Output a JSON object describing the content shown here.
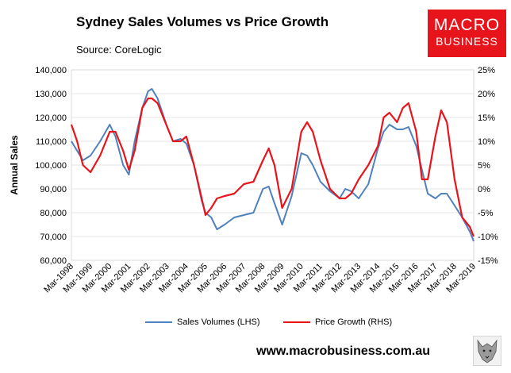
{
  "header": {
    "title": "Sydney Sales Volumes vs Price Growth",
    "source": "Source: CoreLogic"
  },
  "logo": {
    "line1": "MACRO",
    "line2": "BUSINESS"
  },
  "footer": {
    "url": "www.macrobusiness.com.au"
  },
  "colors": {
    "sales": "#4f81bd",
    "price": "#e8141b",
    "logo_bg": "#e8141b"
  },
  "chart_data": {
    "type": "line",
    "title": "Sydney Sales Volumes vs Price Growth",
    "ylabel": "Annual Sales",
    "ylim_left": [
      60000,
      140000
    ],
    "ylim_right": [
      -15,
      25
    ],
    "y_ticks_left": [
      "140,000",
      "130,000",
      "120,000",
      "110,000",
      "100,000",
      "90,000",
      "80,000",
      "70,000",
      "60,000"
    ],
    "y_ticks_right": [
      "25%",
      "20%",
      "15%",
      "10%",
      "5%",
      "0%",
      "-5%",
      "-10%",
      "-15%"
    ],
    "x_ticks": [
      "Mar-1998",
      "Mar-1999",
      "Mar-2000",
      "Mar-2001",
      "Mar-2002",
      "Mar-2003",
      "Mar-2004",
      "Mar-2005",
      "Mar-2006",
      "Mar-2007",
      "Mar-2008",
      "Mar-2009",
      "Mar-2010",
      "Mar-2011",
      "Mar-2012",
      "Mar-2013",
      "Mar-2014",
      "Mar-2015",
      "Mar-2016",
      "Mar-2017",
      "Mar-2018",
      "Mar-2019"
    ],
    "xlim": [
      1998.0,
      2019.0
    ],
    "series": [
      {
        "name": "Sales Volumes (LHS)",
        "axis": "left",
        "color": "#4f81bd",
        "x": [
          1998.0,
          1998.3,
          1998.6,
          1999.0,
          1999.5,
          2000.0,
          2000.3,
          2000.7,
          2001.0,
          2001.3,
          2001.7,
          2002.0,
          2002.2,
          2002.5,
          2003.0,
          2003.3,
          2003.7,
          2004.0,
          2004.4,
          2004.8,
          2005.0,
          2005.3,
          2005.6,
          2006.0,
          2006.5,
          2007.0,
          2007.5,
          2008.0,
          2008.3,
          2008.6,
          2009.0,
          2009.5,
          2010.0,
          2010.3,
          2010.6,
          2011.0,
          2011.5,
          2012.0,
          2012.3,
          2012.6,
          2013.0,
          2013.5,
          2014.0,
          2014.3,
          2014.6,
          2015.0,
          2015.3,
          2015.6,
          2016.0,
          2016.3,
          2016.6,
          2017.0,
          2017.3,
          2017.6,
          2018.0,
          2018.4,
          2018.8,
          2019.0
        ],
        "values": [
          110000,
          106000,
          102000,
          104000,
          110000,
          117000,
          112000,
          100000,
          96000,
          110000,
          124000,
          131000,
          132000,
          128000,
          116000,
          110000,
          111000,
          109000,
          100000,
          85000,
          80000,
          78000,
          73000,
          75000,
          78000,
          79000,
          80000,
          90000,
          91000,
          84000,
          75000,
          87000,
          105000,
          104000,
          100000,
          93000,
          89000,
          86000,
          90000,
          89000,
          86000,
          92000,
          107000,
          114000,
          117000,
          115000,
          115000,
          116000,
          108000,
          98000,
          88000,
          86000,
          88000,
          88000,
          83000,
          78000,
          72000,
          68000
        ]
      },
      {
        "name": "Price Growth (RHS)",
        "axis": "right",
        "color": "#e8141b",
        "x": [
          1998.0,
          1998.3,
          1998.6,
          1999.0,
          1999.5,
          2000.0,
          2000.3,
          2000.7,
          2001.0,
          2001.3,
          2001.7,
          2002.0,
          2002.2,
          2002.5,
          2003.0,
          2003.3,
          2003.7,
          2004.0,
          2004.4,
          2004.8,
          2005.0,
          2005.3,
          2005.6,
          2006.0,
          2006.5,
          2007.0,
          2007.5,
          2008.0,
          2008.3,
          2008.6,
          2009.0,
          2009.5,
          2010.0,
          2010.3,
          2010.6,
          2011.0,
          2011.5,
          2012.0,
          2012.3,
          2012.6,
          2013.0,
          2013.5,
          2014.0,
          2014.3,
          2014.6,
          2015.0,
          2015.3,
          2015.6,
          2016.0,
          2016.3,
          2016.6,
          2017.0,
          2017.3,
          2017.6,
          2018.0,
          2018.4,
          2018.8,
          2019.0
        ],
        "values": [
          13.5,
          10,
          5,
          3.5,
          7,
          12,
          12,
          8,
          4,
          8,
          17,
          19,
          19,
          18,
          13,
          10,
          10,
          11,
          5,
          -2,
          -5.5,
          -4,
          -2,
          -1.5,
          -1,
          1,
          1.5,
          6,
          8.5,
          5,
          -4,
          0,
          12,
          14,
          12,
          6,
          0,
          -2,
          -2,
          -1,
          2,
          5,
          9,
          15,
          16,
          14,
          17,
          18,
          12,
          2,
          2,
          11,
          16.5,
          14,
          2,
          -6,
          -8,
          -10
        ]
      }
    ],
    "legend": [
      "Sales Volumes (LHS)",
      "Price Growth (RHS)"
    ]
  }
}
